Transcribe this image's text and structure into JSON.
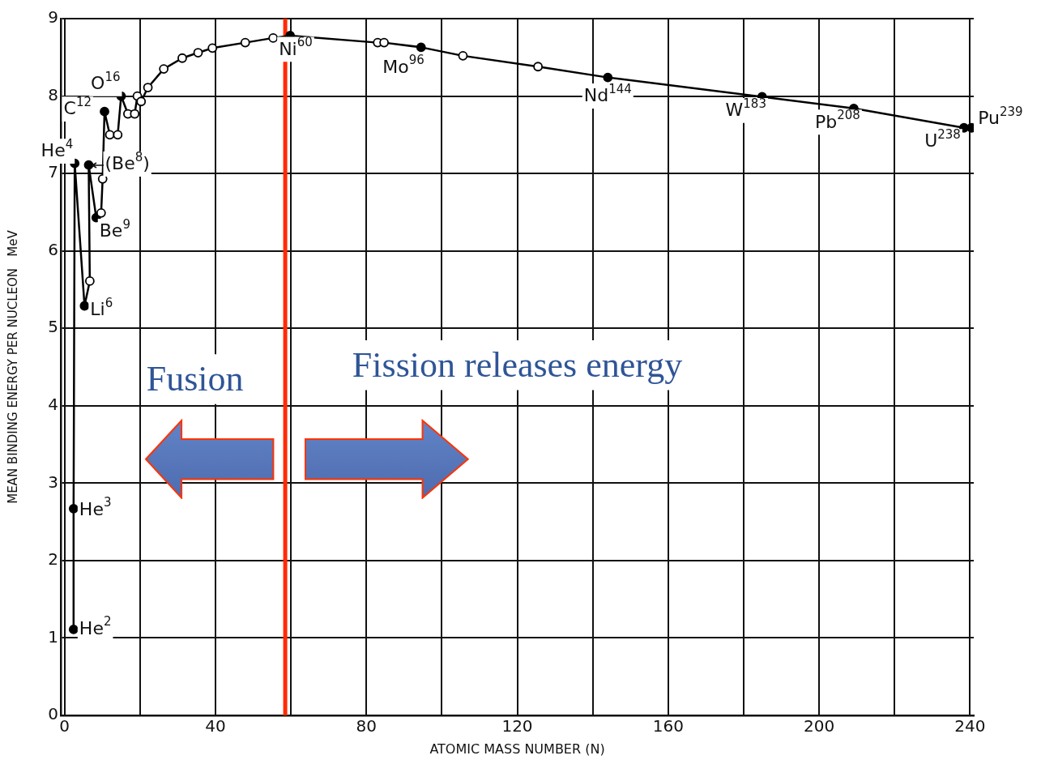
{
  "chart_data": {
    "type": "line",
    "xlabel": "ATOMIC MASS NUMBER (N)",
    "ylabel": "MEAN BINDING ENERGY PER NUCLEON   MeV",
    "x": [
      2.4,
      2.4,
      2.7,
      5.3,
      6.7,
      6.4,
      8.4,
      9.7,
      10.1,
      10.6,
      12,
      14.1,
      15,
      16.8,
      18.6,
      19.3,
      20.3,
      22.1,
      26.3,
      31.2,
      35.4,
      39.2,
      47.9,
      55.3,
      59.8,
      83,
      84.7,
      94.5,
      105.6,
      125.5,
      144,
      184.9,
      209.2,
      238.4,
      240.4
    ],
    "series": [
      {
        "color": "#000000",
        "values": [
          1.11,
          2.67,
          7.13,
          5.29,
          5.61,
          7.11,
          6.43,
          6.49,
          6.93,
          7.8,
          7.5,
          7.5,
          8.0,
          7.77,
          7.77,
          8.0,
          7.93,
          8.11,
          8.35,
          8.49,
          8.56,
          8.62,
          8.69,
          8.75,
          8.78,
          8.69,
          8.69,
          8.63,
          8.52,
          8.38,
          8.24,
          7.99,
          7.84,
          7.59,
          7.59
        ],
        "colors": [
          "#000000",
          "#000000",
          "#000000",
          "#000000",
          "#ffffff",
          "#000000",
          "#000000",
          "#ffffff",
          "#ffffff",
          "#000000",
          "#ffffff",
          "#ffffff",
          "#000000",
          "#ffffff",
          "#ffffff",
          "#ffffff",
          "#ffffff",
          "#ffffff",
          "#ffffff",
          "#ffffff",
          "#ffffff",
          "#ffffff",
          "#ffffff",
          "#ffffff",
          "#000000",
          "#ffffff",
          "#ffffff",
          "#000000",
          "#ffffff",
          "#ffffff",
          "#000000",
          "#000000",
          "#000000",
          "#000000",
          "#000000"
        ]
      }
    ],
    "marker": "circle",
    "line_style": "solid",
    "xlim": [
      -1,
      241
    ],
    "xticks": [
      0,
      {
        "value": 20,
        "label": null
      },
      40,
      {
        "value": 60,
        "label": null
      },
      80,
      {
        "value": 100,
        "label": null
      },
      120,
      {
        "value": 140,
        "label": null
      },
      160,
      {
        "value": 180,
        "label": null
      },
      200,
      {
        "value": 220,
        "label": null
      },
      240
    ],
    "ylim": [
      0,
      9
    ],
    "yticks": [
      0,
      1,
      2,
      3,
      4,
      5,
      6,
      7,
      8,
      9
    ],
    "grid": true,
    "ref_lines": [
      {
        "axis": "x",
        "value": 58.5,
        "color": "#ff2a00"
      }
    ],
    "annotations": [
      {
        "text": "He$^{2}$",
        "x": 2.4,
        "y": 1.11
      },
      {
        "text": "He$^{3}$",
        "x": 2.4,
        "y": 2.67
      },
      {
        "text": "He$^{4}$",
        "x": 2.7,
        "y": 7.13
      },
      {
        "text": "Li$^{6}$",
        "x": 5.3,
        "y": 5.29
      },
      {
        "text": "(Be$^{8}$)",
        "x": 6.4,
        "y": 7.11
      },
      {
        "text": "Be$^{9}$",
        "x": 8.4,
        "y": 6.43
      },
      {
        "text": "C$^{12}$",
        "x": 10.6,
        "y": 7.8
      },
      {
        "text": "O$^{16}$",
        "x": 15,
        "y": 8.0
      },
      {
        "text": "Ni$^{60}$",
        "x": 59.8,
        "y": 8.78
      },
      {
        "text": "Mo$^{96}$",
        "x": 94.5,
        "y": 8.63
      },
      {
        "text": "Nd$^{144}$",
        "x": 144,
        "y": 8.24
      },
      {
        "text": "W$^{183}$",
        "x": 184.9,
        "y": 7.99
      },
      {
        "text": "Pb$^{208}$",
        "x": 209.2,
        "y": 7.84
      },
      {
        "text": "U$^{238}$",
        "x": 238.4,
        "y": 7.59
      },
      {
        "text": "Pu$^{239}$",
        "x": 240.4,
        "y": 7.59
      },
      "Fusion",
      "Fission releases energy"
    ]
  }
}
